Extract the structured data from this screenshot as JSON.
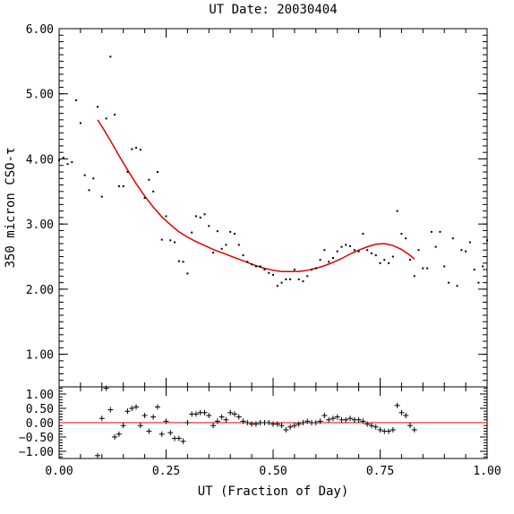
{
  "chart_data": [
    {
      "type": "scatter",
      "title": "UT Date: 20030404",
      "xlabel": "",
      "ylabel": "350 micron CSO-τ",
      "xlim": [
        0.0,
        1.0
      ],
      "ylim": [
        0.5,
        6.0
      ],
      "xticks": [
        0.0,
        0.25,
        0.5,
        0.75,
        1.0
      ],
      "yticks": [
        1.0,
        2.0,
        3.0,
        4.0,
        5.0,
        6.0
      ],
      "ytick_labels": [
        "1.00",
        "2.00",
        "3.00",
        "4.00",
        "5.00",
        "6.00"
      ],
      "colors": {
        "points": "#000000",
        "fit": "#e00000"
      },
      "series": [
        {
          "kind": "points",
          "marker": "dot",
          "x": [
            0.0,
            0.01,
            0.02,
            0.03,
            0.04,
            0.05,
            0.06,
            0.07,
            0.08,
            0.09,
            0.1,
            0.11,
            0.12,
            0.13,
            0.14,
            0.15,
            0.16,
            0.17,
            0.18,
            0.19,
            0.2,
            0.21,
            0.22,
            0.23,
            0.24,
            0.25,
            0.26,
            0.27,
            0.28,
            0.29,
            0.3,
            0.31,
            0.32,
            0.33,
            0.34,
            0.35,
            0.36,
            0.37,
            0.38,
            0.39,
            0.4,
            0.41,
            0.42,
            0.43,
            0.44,
            0.45,
            0.46,
            0.47,
            0.48,
            0.49,
            0.5,
            0.51,
            0.52,
            0.53,
            0.54,
            0.55,
            0.56,
            0.57,
            0.58,
            0.59,
            0.6,
            0.61,
            0.62,
            0.63,
            0.64,
            0.65,
            0.66,
            0.67,
            0.68,
            0.69,
            0.7,
            0.71,
            0.72,
            0.73,
            0.74,
            0.75,
            0.76,
            0.77,
            0.78,
            0.79,
            0.8,
            0.81,
            0.82,
            0.83,
            0.84,
            0.85,
            0.86,
            0.87,
            0.88,
            0.89,
            0.9,
            0.91,
            0.92,
            0.93,
            0.94,
            0.95,
            0.96,
            0.97,
            0.98,
            0.99,
            1.0
          ],
          "y": [
            3.98,
            4.02,
            3.92,
            3.95,
            4.9,
            4.55,
            3.75,
            3.52,
            3.7,
            4.8,
            3.42,
            4.62,
            5.57,
            4.68,
            3.58,
            3.58,
            3.8,
            4.15,
            4.17,
            4.14,
            3.4,
            3.68,
            3.5,
            3.8,
            2.76,
            3.12,
            2.75,
            2.72,
            2.43,
            2.42,
            2.24,
            2.87,
            3.12,
            3.1,
            3.15,
            2.97,
            2.56,
            2.89,
            2.62,
            2.68,
            2.88,
            2.85,
            2.68,
            2.52,
            2.42,
            2.38,
            2.35,
            2.35,
            2.3,
            2.25,
            2.22,
            2.05,
            2.1,
            2.15,
            2.15,
            2.3,
            2.15,
            2.12,
            2.2,
            2.3,
            2.32,
            2.45,
            2.6,
            2.42,
            2.48,
            2.58,
            2.65,
            2.68,
            2.66,
            2.6,
            2.58,
            2.85,
            2.6,
            2.55,
            2.52,
            2.4,
            2.45,
            2.4,
            2.5,
            3.2,
            2.85,
            2.78,
            2.45,
            2.2,
            2.6,
            2.32,
            2.32,
            2.88,
            2.65,
            2.88,
            2.35,
            2.1,
            2.78,
            2.05,
            2.6,
            2.58,
            2.72,
            2.3,
            2.1,
            2.35,
            2.75
          ]
        },
        {
          "kind": "fit",
          "x": [
            0.09,
            0.1,
            0.12,
            0.14,
            0.16,
            0.18,
            0.2,
            0.22,
            0.24,
            0.26,
            0.28,
            0.3,
            0.32,
            0.34,
            0.36,
            0.38,
            0.4,
            0.42,
            0.44,
            0.46,
            0.48,
            0.5,
            0.52,
            0.54,
            0.56,
            0.58,
            0.6,
            0.62,
            0.64,
            0.66,
            0.68,
            0.7,
            0.72,
            0.74,
            0.76,
            0.78,
            0.8,
            0.82,
            0.83
          ],
          "y": [
            4.6,
            4.5,
            4.28,
            4.05,
            3.83,
            3.62,
            3.43,
            3.26,
            3.11,
            2.99,
            2.88,
            2.8,
            2.73,
            2.67,
            2.61,
            2.56,
            2.51,
            2.46,
            2.41,
            2.36,
            2.32,
            2.29,
            2.27,
            2.27,
            2.27,
            2.29,
            2.32,
            2.36,
            2.41,
            2.47,
            2.54,
            2.6,
            2.65,
            2.69,
            2.7,
            2.67,
            2.61,
            2.52,
            2.46
          ]
        }
      ]
    },
    {
      "type": "scatter",
      "title": "",
      "xlabel": "UT (Fraction of Day)",
      "ylabel": "",
      "xlim": [
        0.0,
        1.0
      ],
      "ylim": [
        -1.25,
        1.25
      ],
      "xticks": [
        0.0,
        0.25,
        0.5,
        0.75,
        1.0
      ],
      "xtick_labels": [
        "0.00",
        "0.25",
        "0.50",
        "0.75",
        "1.00"
      ],
      "yticks": [
        -1.0,
        -0.5,
        0.0,
        0.5,
        1.0
      ],
      "ytick_labels": [
        "−1.00",
        "−0.50",
        "0.00",
        "0.50",
        "1.00"
      ],
      "zero_line": 0.0,
      "series": [
        {
          "kind": "residuals",
          "marker": "plus",
          "x": [
            0.09,
            0.1,
            0.11,
            0.12,
            0.13,
            0.14,
            0.15,
            0.16,
            0.17,
            0.18,
            0.19,
            0.2,
            0.21,
            0.22,
            0.23,
            0.24,
            0.25,
            0.26,
            0.27,
            0.28,
            0.29,
            0.3,
            0.31,
            0.32,
            0.33,
            0.34,
            0.35,
            0.36,
            0.37,
            0.38,
            0.39,
            0.4,
            0.41,
            0.42,
            0.43,
            0.44,
            0.45,
            0.46,
            0.47,
            0.48,
            0.49,
            0.5,
            0.51,
            0.52,
            0.53,
            0.54,
            0.55,
            0.56,
            0.57,
            0.58,
            0.59,
            0.6,
            0.61,
            0.62,
            0.63,
            0.64,
            0.65,
            0.66,
            0.67,
            0.68,
            0.69,
            0.7,
            0.71,
            0.72,
            0.73,
            0.74,
            0.75,
            0.76,
            0.77,
            0.78,
            0.79,
            0.8,
            0.81,
            0.82,
            0.83
          ],
          "y": [
            -1.15,
            0.15,
            1.2,
            0.45,
            -0.5,
            -0.4,
            -0.1,
            0.4,
            0.5,
            0.55,
            -0.1,
            0.25,
            -0.3,
            0.2,
            0.55,
            -0.4,
            0.05,
            -0.35,
            -0.55,
            -0.55,
            -0.65,
            0.0,
            0.3,
            0.3,
            0.35,
            0.35,
            0.25,
            -0.1,
            0.05,
            0.2,
            0.1,
            0.35,
            0.3,
            0.2,
            0.05,
            0.0,
            -0.05,
            -0.05,
            0.0,
            0.0,
            0.0,
            -0.05,
            -0.05,
            -0.1,
            -0.25,
            -0.15,
            -0.1,
            -0.05,
            0.0,
            0.05,
            0.0,
            0.0,
            0.05,
            0.25,
            0.1,
            0.15,
            0.2,
            0.1,
            0.1,
            0.15,
            0.1,
            0.1,
            0.05,
            -0.05,
            -0.1,
            -0.15,
            -0.25,
            -0.3,
            -0.3,
            -0.25,
            0.6,
            0.35,
            0.25,
            -0.1,
            -0.25
          ]
        }
      ]
    }
  ]
}
